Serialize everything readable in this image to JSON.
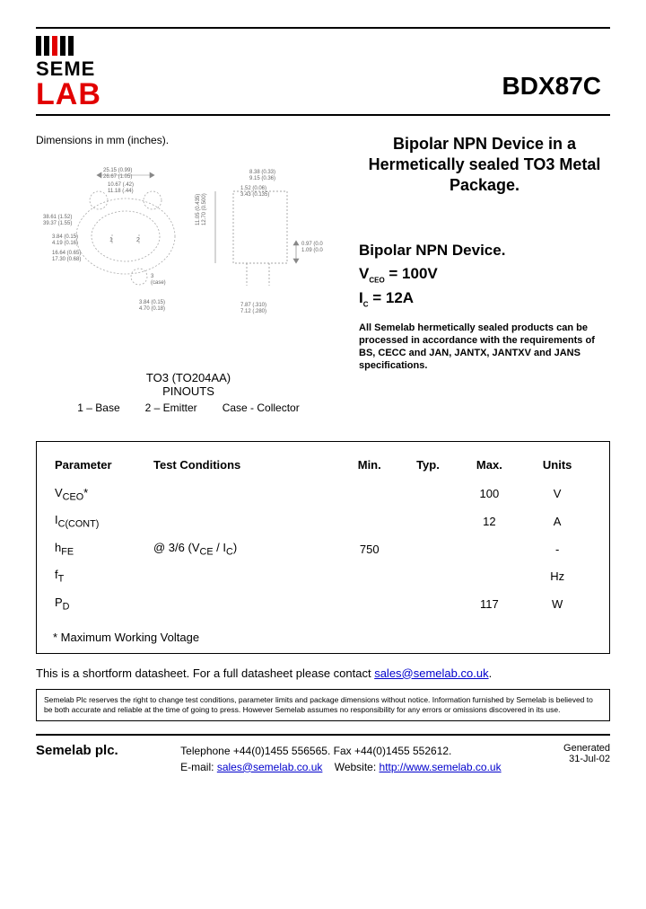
{
  "logo": {
    "seme": "SEME",
    "lab": "LAB"
  },
  "part_number": "BDX87C",
  "dimensions_label": "Dimensions in mm (inches).",
  "package": {
    "name": "TO3 (TO204AA)",
    "pinouts_label": "PINOUTS",
    "pin1": "1 – Base",
    "pin2": "2 – Emitter",
    "pin3": "Case - Collector"
  },
  "title": "Bipolar NPN Device in a Hermetically sealed TO3 Metal Package.",
  "device_type": "Bipolar NPN Device.",
  "specs": {
    "vceo_label": "V",
    "vceo_sub": "CEO",
    "vceo_eq": " =  100V",
    "ic_label": "I",
    "ic_sub": "C",
    "ic_eq": " = 12A"
  },
  "compliance_note": "All Semelab hermetically sealed products can be processed in accordance with the requirements of BS, CECC and JAN, JANTX, JANTXV and JANS specifications.",
  "table": {
    "headers": {
      "param": "Parameter",
      "cond": "Test Conditions",
      "min": "Min.",
      "typ": "Typ.",
      "max": "Max.",
      "units": "Units"
    },
    "rows": [
      {
        "param_html": "V<sub>CEO</sub>*",
        "cond": "",
        "min": "",
        "typ": "",
        "max": "100",
        "units": "V"
      },
      {
        "param_html": "I<sub>C(CONT)</sub>",
        "cond": "",
        "min": "",
        "typ": "",
        "max": "12",
        "units": "A"
      },
      {
        "param_html": "h<sub>FE</sub>",
        "cond": "@ 3/6 (V<sub>CE</sub> / I<sub>C</sub>)",
        "min": "750",
        "typ": "",
        "max": "",
        "units": "-"
      },
      {
        "param_html": "f<sub>T</sub>",
        "cond": "",
        "min": "",
        "typ": "",
        "max": "",
        "units": "Hz"
      },
      {
        "param_html": "P<sub>D</sub>",
        "cond": "",
        "min": "",
        "typ": "",
        "max": "117",
        "units": "W"
      }
    ],
    "footnote": "* Maximum Working Voltage"
  },
  "shortform_text": "This is a shortform datasheet. For a full datasheet please contact ",
  "shortform_email": "sales@semelab.co.uk",
  "shortform_period": ".",
  "disclaimer": "Semelab Plc reserves the right to change test conditions, parameter limits and package dimensions without notice. Information furnished by Semelab is believed to be both accurate and reliable at the time of going to press. However Semelab assumes no responsibility for any errors or omissions discovered in its use.",
  "footer": {
    "company": "Semelab plc.",
    "phone_line": "Telephone +44(0)1455 556565. Fax +44(0)1455 552612.",
    "email_label": "E-mail: ",
    "email": "sales@semelab.co.uk",
    "website_label": "    Website: ",
    "website": "http://www.semelab.co.uk",
    "generated_label": "Generated",
    "generated_date": "31-Jul-02"
  },
  "colors": {
    "red": "#e20000",
    "link": "#0000cc",
    "text": "#000000",
    "diagram_line": "#888888"
  }
}
